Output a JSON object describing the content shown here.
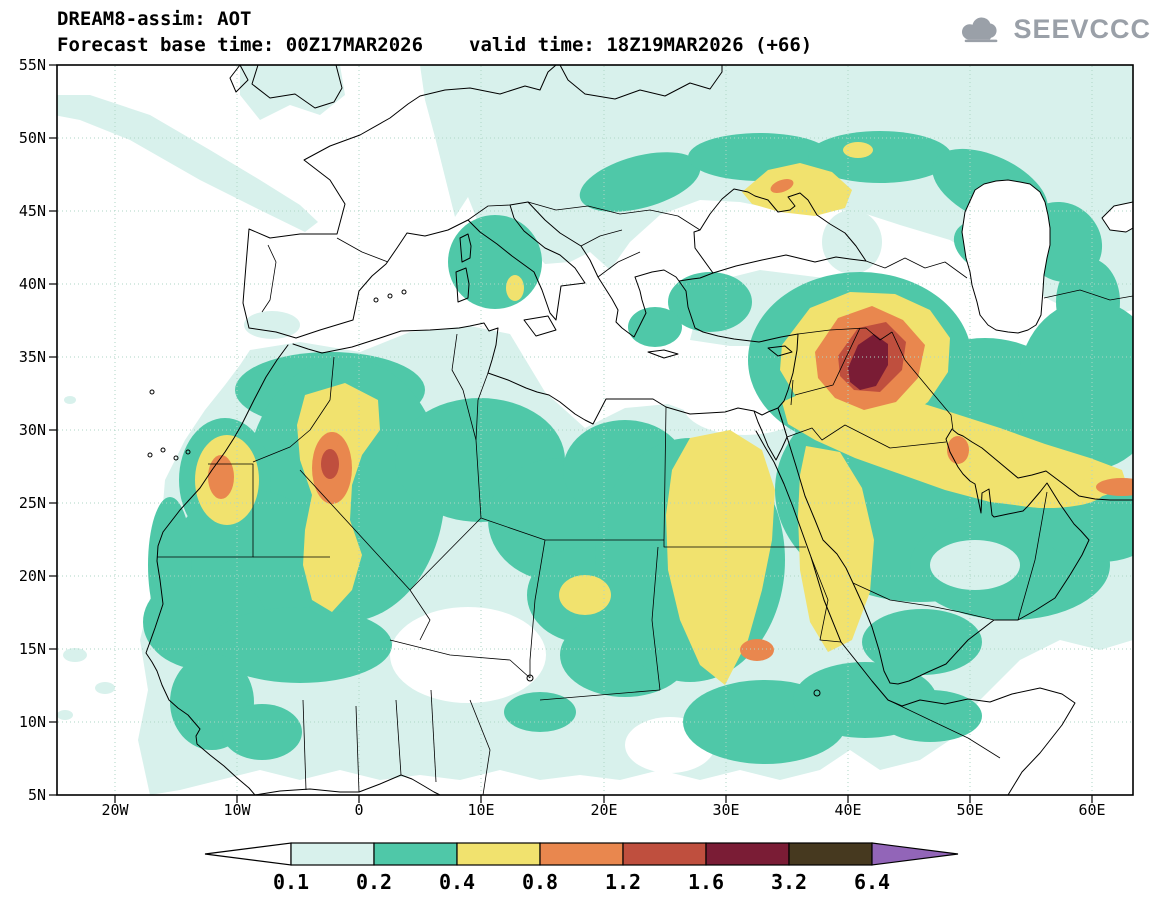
{
  "header": {
    "title": "DREAM8-assim: AOT",
    "base_time_label": "Forecast base time: 00Z17MAR2026",
    "valid_time_label": "valid time: 18Z19MAR2026 (+66)"
  },
  "logo": {
    "text": "SEEVCCC"
  },
  "chart_data": {
    "type": "heatmap",
    "title": "DREAM8-assim: AOT",
    "model": "DREAM8-assim",
    "variable": "AOT",
    "forecast_base_time": "00Z17MAR2026",
    "valid_time": "18Z19MAR2026",
    "forecast_lead": "+66",
    "lat_ticks": [
      "55N",
      "50N",
      "45N",
      "40N",
      "35N",
      "30N",
      "25N",
      "20N",
      "15N",
      "10N",
      "5N"
    ],
    "lon_ticks": [
      "20W",
      "10W",
      "0",
      "10E",
      "20E",
      "30E",
      "40E",
      "50E",
      "60E"
    ],
    "grid": "dotted",
    "legend_position": "bottom",
    "colorbar": {
      "levels": [
        "0.1",
        "0.2",
        "0.4",
        "0.8",
        "1.2",
        "1.6",
        "3.2",
        "6.4"
      ],
      "colors": [
        "#ffffff",
        "#d8f1ec",
        "#4fc8a8",
        "#f1e26e",
        "#e9874e",
        "#bf4f3e",
        "#7a1c35",
        "#46391f",
        "#9265b8"
      ]
    },
    "maxima": [
      {
        "area": "Syria-Iraq region (~40E, 34N)",
        "aot": "> 1.6"
      },
      {
        "area": "S Algeria / N Mali (~3W, 27N)",
        "aot": "> 1.2"
      },
      {
        "area": "W Sahara coast (~10W, 27N)",
        "aot": "> 1.2"
      },
      {
        "area": "Sudan (~36E, 15N)",
        "aot": "> 0.8"
      },
      {
        "area": "Arabian Peninsula / Persian Gulf belt",
        "aot": "> 0.4"
      }
    ]
  }
}
